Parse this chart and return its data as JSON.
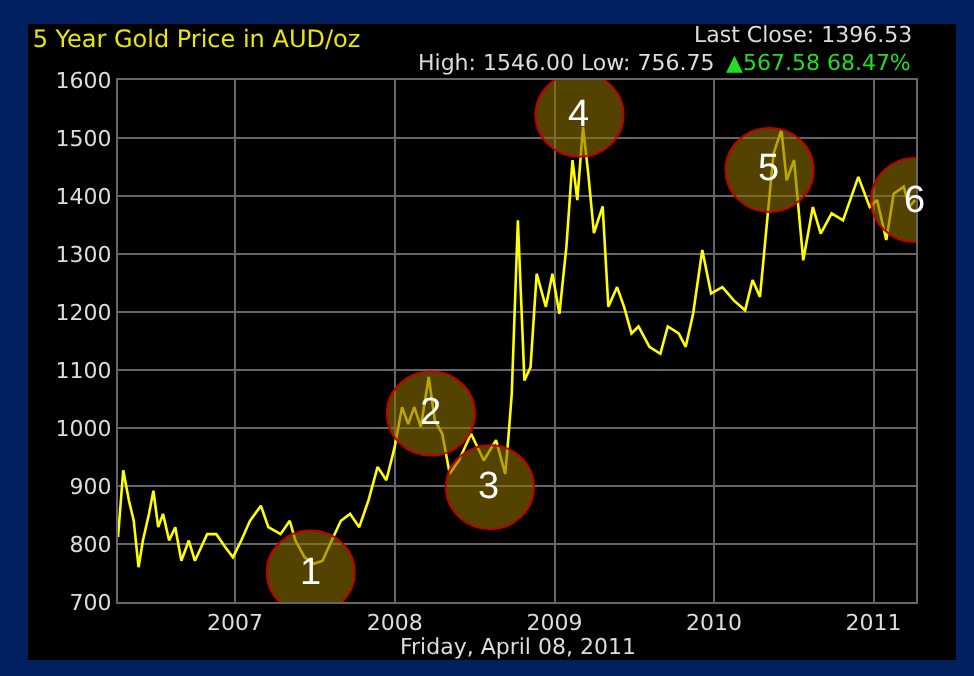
{
  "chart_data": {
    "type": "line",
    "title": "5 Year Gold Price in AUD/oz",
    "subtitle": "High: 1546.00 Low: 756.75",
    "annotations": [
      "Last Close: 1396.53",
      "▲567.58 68.47%",
      "Friday, April 08, 2011",
      {
        "text": "1",
        "x": "2007-06-23",
        "y": 751
      },
      {
        "text": "2",
        "x": "2008-03-24",
        "y": 1025
      },
      {
        "text": "3",
        "x": "2008-08-06",
        "y": 898
      },
      {
        "text": "4",
        "x": "2009-02-27",
        "y": 1540
      },
      {
        "text": "5",
        "x": "2010-05-08",
        "y": 1445
      },
      {
        "text": "6",
        "x": "2011-04-06",
        "y": 1393
      }
    ],
    "x": [
      "2006-04-08",
      "2006-04-20",
      "2006-05-03",
      "2006-05-14",
      "2006-05-25",
      "2006-06-04",
      "2006-06-18",
      "2006-06-28",
      "2006-07-09",
      "2006-07-20",
      "2006-08-03",
      "2006-08-17",
      "2006-08-31",
      "2006-09-17",
      "2006-10-01",
      "2006-10-15",
      "2006-10-29",
      "2006-11-19",
      "2006-12-10",
      "2006-12-27",
      "2007-01-15",
      "2007-02-04",
      "2007-03-01",
      "2007-03-18",
      "2007-04-15",
      "2007-05-06",
      "2007-05-19",
      "2007-06-09",
      "2007-06-30",
      "2007-07-20",
      "2007-08-10",
      "2007-08-31",
      "2007-09-21",
      "2007-10-12",
      "2007-11-02",
      "2007-11-23",
      "2007-12-13",
      "2008-01-01",
      "2008-01-18",
      "2008-02-01",
      "2008-02-15",
      "2008-03-01",
      "2008-03-19",
      "2008-04-02",
      "2008-04-19",
      "2008-05-06",
      "2008-05-27",
      "2008-06-24",
      "2008-07-23",
      "2008-08-20",
      "2008-09-10",
      "2008-09-18",
      "2008-09-25",
      "2008-10-09",
      "2008-10-24",
      "2008-11-07",
      "2008-11-21",
      "2008-12-12",
      "2008-12-27",
      "2009-01-12",
      "2009-01-28",
      "2009-02-11",
      "2009-02-22",
      "2009-03-07",
      "2009-03-19",
      "2009-04-01",
      "2009-04-21",
      "2009-05-04",
      "2009-05-24",
      "2009-06-09",
      "2009-06-26",
      "2009-07-12",
      "2009-08-06",
      "2009-08-31",
      "2009-09-17",
      "2009-10-12",
      "2009-10-28",
      "2009-11-14",
      "2009-12-05",
      "2009-12-25",
      "2010-01-20",
      "2010-02-15",
      "2010-03-13",
      "2010-03-30",
      "2010-04-16",
      "2010-05-04",
      "2010-05-17",
      "2010-06-04",
      "2010-06-16",
      "2010-07-03",
      "2010-07-24",
      "2010-08-15",
      "2010-09-02",
      "2010-09-27",
      "2010-10-23",
      "2010-11-27",
      "2010-12-23",
      "2011-01-09",
      "2011-01-30",
      "2011-02-16",
      "2011-03-11",
      "2011-03-23",
      "2011-04-06"
    ],
    "series": [
      {
        "color": "#ffff00",
        "values": [
          812,
          927,
          875,
          840,
          760,
          806,
          852,
          892,
          829,
          852,
          806,
          829,
          771,
          806,
          771,
          794,
          817,
          817,
          794,
          777,
          806,
          840,
          866,
          829,
          817,
          840,
          806,
          777,
          766,
          771,
          806,
          840,
          852,
          829,
          875,
          933,
          910,
          967,
          1036,
          1007,
          1036,
          1002,
          1088,
          1013,
          990,
          921,
          944,
          990,
          944,
          979,
          921,
          990,
          1059,
          1358,
          1082,
          1105,
          1266,
          1209,
          1266,
          1197,
          1312,
          1462,
          1393,
          1519,
          1439,
          1336,
          1382,
          1209,
          1243,
          1209,
          1163,
          1175,
          1140,
          1128,
          1175,
          1163,
          1140,
          1197,
          1307,
          1232,
          1243,
          1220,
          1203,
          1255,
          1226,
          1370,
          1473,
          1514,
          1427,
          1462,
          1289,
          1381,
          1335,
          1370,
          1358,
          1433,
          1381,
          1393,
          1324,
          1404,
          1416,
          1381,
          1393
        ]
      }
    ],
    "xlim": [
      "2006-04-08",
      "2011-04-08"
    ],
    "xticks": [
      "2007",
      "2008",
      "2009",
      "2010",
      "2011"
    ],
    "ylim": [
      700,
      1600
    ],
    "yticks": [
      700,
      800,
      900,
      1000,
      1100,
      1200,
      1300,
      1400,
      1500,
      1600
    ],
    "grid": true,
    "marker": "none",
    "line_style": "solid"
  }
}
